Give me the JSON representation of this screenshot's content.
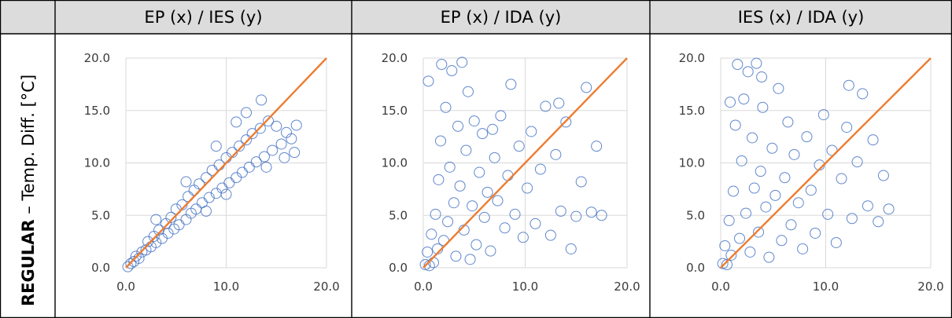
{
  "table": {
    "corner": "",
    "row_label_bold": "REGULAR",
    "row_label_rest": " – Temp. Diff. [°C]"
  },
  "style": {
    "header_bg": "#dcdcdc",
    "grid_line": "#d9d9d9",
    "marker_color": "#4472c4",
    "line_color": "#ed7d31"
  },
  "chart_data": [
    {
      "type": "scatter",
      "title": "EP (x) / IES (y)",
      "xlim": [
        0,
        20
      ],
      "ylim": [
        0,
        20
      ],
      "xticks": [
        "0.0",
        "10.0",
        "20.0"
      ],
      "yticks": [
        "0.0",
        "5.0",
        "10.0",
        "15.0",
        "20.0"
      ],
      "grid": true,
      "reference_line": {
        "x": [
          0,
          20
        ],
        "y": [
          0,
          20
        ]
      },
      "points": [
        [
          0.2,
          0.1
        ],
        [
          0.5,
          0.4
        ],
        [
          0.8,
          0.6
        ],
        [
          1.0,
          1.1
        ],
        [
          1.3,
          0.9
        ],
        [
          1.6,
          1.5
        ],
        [
          2.0,
          1.7
        ],
        [
          2.2,
          2.5
        ],
        [
          2.5,
          2.0
        ],
        [
          2.8,
          3.0
        ],
        [
          3.0,
          2.4
        ],
        [
          3.3,
          3.6
        ],
        [
          3.6,
          2.8
        ],
        [
          4.0,
          4.2
        ],
        [
          4.2,
          3.3
        ],
        [
          4.5,
          4.8
        ],
        [
          4.8,
          3.7
        ],
        [
          5.0,
          5.6
        ],
        [
          5.3,
          4.1
        ],
        [
          5.6,
          6.0
        ],
        [
          6.0,
          4.6
        ],
        [
          6.2,
          6.8
        ],
        [
          6.5,
          5.2
        ],
        [
          6.8,
          7.4
        ],
        [
          7.0,
          5.6
        ],
        [
          7.3,
          8.0
        ],
        [
          7.6,
          6.2
        ],
        [
          8.0,
          8.6
        ],
        [
          8.3,
          6.7
        ],
        [
          8.6,
          9.3
        ],
        [
          9.0,
          7.1
        ],
        [
          9.3,
          9.8
        ],
        [
          9.6,
          7.6
        ],
        [
          10.0,
          10.5
        ],
        [
          10.3,
          8.1
        ],
        [
          10.6,
          11.0
        ],
        [
          11.0,
          8.6
        ],
        [
          11.3,
          11.6
        ],
        [
          11.6,
          9.1
        ],
        [
          12.0,
          12.2
        ],
        [
          12.3,
          9.6
        ],
        [
          12.6,
          12.8
        ],
        [
          13.0,
          10.1
        ],
        [
          13.4,
          13.3
        ],
        [
          13.8,
          10.6
        ],
        [
          14.2,
          14.0
        ],
        [
          14.6,
          11.2
        ],
        [
          15.0,
          13.5
        ],
        [
          15.5,
          11.8
        ],
        [
          16.0,
          12.9
        ],
        [
          16.5,
          12.3
        ],
        [
          17.0,
          13.6
        ],
        [
          3.0,
          4.6
        ],
        [
          6.0,
          8.2
        ],
        [
          9.0,
          11.6
        ],
        [
          12.0,
          14.8
        ],
        [
          13.5,
          16.0
        ],
        [
          11.0,
          13.9
        ],
        [
          8.0,
          5.4
        ],
        [
          10.0,
          7.0
        ],
        [
          14.0,
          9.6
        ],
        [
          15.8,
          10.5
        ],
        [
          16.8,
          11.0
        ]
      ]
    },
    {
      "type": "scatter",
      "title": "EP (x) / IDA (y)",
      "xlim": [
        0,
        20
      ],
      "ylim": [
        0,
        20
      ],
      "xticks": [
        "0.0",
        "10.0",
        "20.0"
      ],
      "yticks": [
        "0.0",
        "5.0",
        "10.0",
        "15.0",
        "20.0"
      ],
      "grid": true,
      "reference_line": {
        "x": [
          0,
          20
        ],
        "y": [
          0,
          20
        ]
      },
      "points": [
        [
          0.2,
          0.3
        ],
        [
          0.4,
          1.5
        ],
        [
          0.6,
          0.2
        ],
        [
          0.8,
          3.2
        ],
        [
          1.0,
          0.5
        ],
        [
          1.2,
          5.1
        ],
        [
          1.4,
          1.8
        ],
        [
          1.5,
          8.4
        ],
        [
          1.7,
          12.1
        ],
        [
          1.8,
          19.4
        ],
        [
          2.0,
          2.6
        ],
        [
          2.2,
          15.3
        ],
        [
          2.4,
          4.4
        ],
        [
          2.6,
          9.6
        ],
        [
          2.8,
          18.8
        ],
        [
          3.0,
          6.2
        ],
        [
          3.2,
          1.1
        ],
        [
          3.4,
          13.5
        ],
        [
          3.6,
          7.8
        ],
        [
          3.8,
          19.6
        ],
        [
          4.0,
          3.6
        ],
        [
          4.2,
          11.2
        ],
        [
          4.4,
          16.8
        ],
        [
          4.6,
          0.8
        ],
        [
          4.8,
          5.9
        ],
        [
          5.0,
          14.0
        ],
        [
          5.2,
          2.2
        ],
        [
          5.5,
          9.1
        ],
        [
          5.8,
          12.8
        ],
        [
          6.0,
          4.8
        ],
        [
          6.3,
          7.2
        ],
        [
          6.6,
          1.6
        ],
        [
          7.0,
          10.5
        ],
        [
          7.3,
          6.4
        ],
        [
          7.6,
          14.5
        ],
        [
          8.0,
          3.8
        ],
        [
          8.3,
          8.8
        ],
        [
          8.6,
          17.5
        ],
        [
          9.0,
          5.1
        ],
        [
          9.4,
          11.6
        ],
        [
          9.8,
          2.9
        ],
        [
          10.2,
          7.6
        ],
        [
          10.6,
          13.0
        ],
        [
          11.0,
          4.2
        ],
        [
          11.5,
          9.4
        ],
        [
          12.0,
          15.4
        ],
        [
          12.5,
          3.1
        ],
        [
          13.0,
          10.8
        ],
        [
          13.5,
          5.4
        ],
        [
          14.0,
          13.9
        ],
        [
          14.5,
          1.8
        ],
        [
          15.0,
          4.9
        ],
        [
          15.5,
          8.2
        ],
        [
          16.0,
          17.2
        ],
        [
          16.5,
          5.3
        ],
        [
          17.0,
          11.6
        ],
        [
          17.5,
          5.0
        ],
        [
          13.3,
          15.7
        ],
        [
          0.5,
          17.8
        ],
        [
          6.8,
          13.2
        ]
      ]
    },
    {
      "type": "scatter",
      "title": "IES (x) / IDA (y)",
      "xlim": [
        0,
        20
      ],
      "ylim": [
        0,
        20
      ],
      "xticks": [
        "0.0",
        "10.0",
        "20.0"
      ],
      "yticks": [
        "0.0",
        "5.0",
        "10.0",
        "15.0",
        "20.0"
      ],
      "grid": true,
      "reference_line": {
        "x": [
          0,
          20
        ],
        "y": [
          0,
          20
        ]
      },
      "points": [
        [
          0.2,
          0.4
        ],
        [
          0.4,
          2.1
        ],
        [
          0.6,
          0.3
        ],
        [
          0.8,
          4.5
        ],
        [
          1.0,
          1.2
        ],
        [
          1.2,
          7.3
        ],
        [
          1.4,
          13.6
        ],
        [
          1.6,
          19.4
        ],
        [
          1.8,
          2.8
        ],
        [
          2.0,
          10.2
        ],
        [
          2.2,
          16.1
        ],
        [
          2.4,
          5.2
        ],
        [
          2.6,
          18.7
        ],
        [
          2.8,
          1.5
        ],
        [
          3.0,
          12.4
        ],
        [
          3.2,
          7.6
        ],
        [
          3.4,
          19.5
        ],
        [
          3.6,
          3.4
        ],
        [
          3.8,
          9.2
        ],
        [
          4.0,
          15.3
        ],
        [
          4.3,
          5.8
        ],
        [
          4.6,
          1.0
        ],
        [
          4.9,
          11.4
        ],
        [
          5.2,
          6.9
        ],
        [
          5.5,
          17.1
        ],
        [
          5.8,
          2.6
        ],
        [
          6.1,
          8.6
        ],
        [
          6.4,
          13.9
        ],
        [
          6.7,
          4.1
        ],
        [
          7.0,
          10.8
        ],
        [
          7.4,
          6.2
        ],
        [
          7.8,
          1.8
        ],
        [
          8.2,
          12.5
        ],
        [
          8.6,
          7.4
        ],
        [
          9.0,
          3.3
        ],
        [
          9.4,
          9.8
        ],
        [
          9.8,
          14.6
        ],
        [
          10.2,
          5.1
        ],
        [
          10.6,
          11.2
        ],
        [
          11.0,
          2.4
        ],
        [
          11.5,
          8.5
        ],
        [
          12.0,
          13.4
        ],
        [
          12.5,
          4.7
        ],
        [
          13.0,
          10.1
        ],
        [
          13.5,
          16.6
        ],
        [
          14.0,
          5.9
        ],
        [
          14.5,
          12.2
        ],
        [
          15.0,
          4.4
        ],
        [
          15.5,
          8.8
        ],
        [
          16.0,
          5.6
        ],
        [
          12.2,
          17.4
        ],
        [
          0.9,
          15.8
        ],
        [
          3.9,
          18.2
        ]
      ]
    }
  ]
}
